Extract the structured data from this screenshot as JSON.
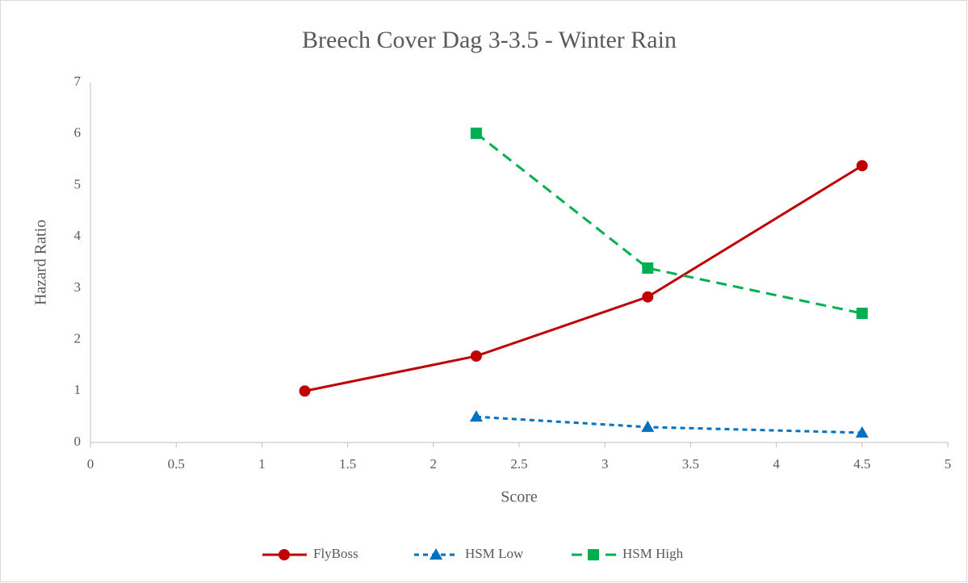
{
  "chart_data": {
    "type": "line",
    "title": "Breech Cover Dag 3-3.5 - Winter Rain",
    "x_label": "Score",
    "y_label": "Hazard Ratio",
    "xlim": [
      0,
      5
    ],
    "xticks": [
      0,
      0.5,
      1,
      1.5,
      2,
      2.5,
      3,
      3.5,
      4,
      4.5,
      5
    ],
    "ylim": [
      0,
      7
    ],
    "yticks": [
      0,
      1,
      2,
      3,
      4,
      5,
      6,
      7
    ],
    "grid": false,
    "legend": "bottom",
    "series": [
      {
        "name": "FlyBoss",
        "color": "#c00000",
        "marker": "circle",
        "dash": "solid",
        "x": [
          1.25,
          2.25,
          3.25,
          4.5
        ],
        "values": [
          1.0,
          1.68,
          2.83,
          5.38
        ]
      },
      {
        "name": "HSM Low",
        "color": "#0070c0",
        "marker": "triangle",
        "dash": "dashed",
        "x": [
          2.25,
          3.25,
          4.5
        ],
        "values": [
          0.5,
          0.3,
          0.19
        ]
      },
      {
        "name": "HSM High",
        "color": "#00b050",
        "marker": "square",
        "dash": "long-dashed",
        "x": [
          2.25,
          3.25,
          4.5
        ],
        "values": [
          6.01,
          3.39,
          2.51
        ]
      }
    ]
  }
}
